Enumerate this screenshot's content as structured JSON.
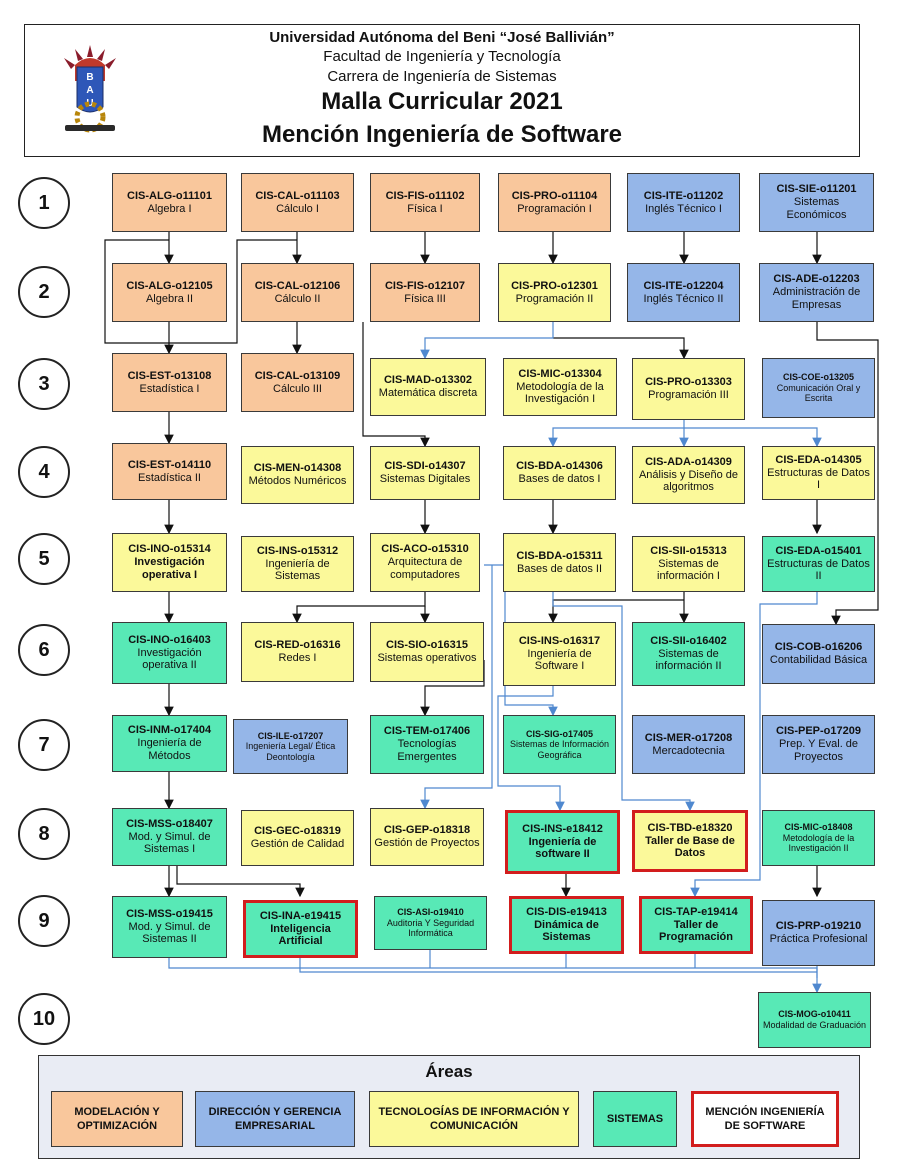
{
  "header": {
    "university": "Universidad Autónoma del Beni “José Ballivián”",
    "faculty": "Facultad de Ingeniería y Tecnología",
    "career": "Carrera de Ingeniería de Sistemas",
    "plan": "Malla Curricular 2021",
    "mention": "Mención Ingeniería de Software"
  },
  "logo": {
    "letters": "BAU"
  },
  "semesters": [
    "1",
    "2",
    "3",
    "4",
    "5",
    "6",
    "7",
    "8",
    "9",
    "10"
  ],
  "colors": {
    "orange": "#f9c79c",
    "blue": "#95b6e8",
    "yellow": "#fbf99a",
    "green": "#58e9b6",
    "mention_border": "#d21d1d"
  },
  "courses": [
    {
      "code": "CIS-ALG-o11101",
      "name": "Algebra I",
      "area": "orange"
    },
    {
      "code": "CIS-CAL-o11103",
      "name": "Cálculo I",
      "area": "orange"
    },
    {
      "code": "CIS-FIS-o11102",
      "name": "Física I",
      "area": "orange"
    },
    {
      "code": "CIS-PRO-o11104",
      "name": "Programación I",
      "area": "orange"
    },
    {
      "code": "CIS-ITE-o11202",
      "name": "Inglés Técnico I",
      "area": "blue"
    },
    {
      "code": "CIS-SIE-o11201",
      "name": "Sistemas Económicos",
      "area": "blue"
    },
    {
      "code": "CIS-ALG-o12105",
      "name": "Algebra II",
      "area": "orange"
    },
    {
      "code": "CIS-CAL-o12106",
      "name": "Cálculo II",
      "area": "orange"
    },
    {
      "code": "CIS-FIS-o12107",
      "name": "Física III",
      "area": "orange"
    },
    {
      "code": "CIS-PRO-o12301",
      "name": "Programación II",
      "area": "yellow"
    },
    {
      "code": "CIS-ITE-o12204",
      "name": "Inglés Técnico II",
      "area": "blue"
    },
    {
      "code": "CIS-ADE-o12203",
      "name": "Administración de Empresas",
      "area": "blue"
    },
    {
      "code": "CIS-EST-o13108",
      "name": "Estadística I",
      "area": "orange"
    },
    {
      "code": "CIS-CAL-o13109",
      "name": "Cálculo III",
      "area": "orange"
    },
    {
      "code": "CIS-MAD-o13302",
      "name": "Matemática discreta",
      "area": "yellow"
    },
    {
      "code": "CIS-MIC-o13304",
      "name": "Metodología de la Investigación I",
      "area": "yellow"
    },
    {
      "code": "CIS-PRO-o13303",
      "name": "Programación III",
      "area": "yellow"
    },
    {
      "code": "CIS-COE-o13205",
      "name": "Comunicación Oral y Escrita",
      "area": "blue"
    },
    {
      "code": "CIS-EST-o14110",
      "name": "Estadística II",
      "area": "orange"
    },
    {
      "code": "CIS-MEN-o14308",
      "name": "Métodos Numéricos",
      "area": "yellow"
    },
    {
      "code": "CIS-SDI-o14307",
      "name": "Sistemas Digitales",
      "area": "yellow"
    },
    {
      "code": "CIS-BDA-o14306",
      "name": "Bases de datos I",
      "area": "yellow"
    },
    {
      "code": "CIS-ADA-o14309",
      "name": "Análisis y Diseño de algoritmos",
      "area": "yellow"
    },
    {
      "code": "CIS-EDA-o14305",
      "name": "Estructuras de Datos I",
      "area": "yellow"
    },
    {
      "code": "CIS-INO-o15314",
      "name": "Investigación operativa I",
      "area": "yellow"
    },
    {
      "code": "CIS-INS-o15312",
      "name": "Ingeniería de Sistemas",
      "area": "yellow"
    },
    {
      "code": "CIS-ACO-o15310",
      "name": "Arquitectura de computadores",
      "area": "yellow"
    },
    {
      "code": "CIS-BDA-o15311",
      "name": "Bases de datos II",
      "area": "yellow"
    },
    {
      "code": "CIS-SII-o15313",
      "name": "Sistemas de información I",
      "area": "yellow"
    },
    {
      "code": "CIS-EDA-o15401",
      "name": "Estructuras de Datos II",
      "area": "green"
    },
    {
      "code": "CIS-INO-o16403",
      "name": "Investigación operativa II",
      "area": "green"
    },
    {
      "code": "CIS-RED-o16316",
      "name": "Redes I",
      "area": "yellow"
    },
    {
      "code": "CIS-SIO-o16315",
      "name": "Sistemas operativos",
      "area": "yellow"
    },
    {
      "code": "CIS-INS-o16317",
      "name": "Ingeniería de Software I",
      "area": "yellow"
    },
    {
      "code": "CIS-SII-o16402",
      "name": "Sistemas de información II",
      "area": "green"
    },
    {
      "code": "CIS-COB-o16206",
      "name": "Contabilidad Básica",
      "area": "blue"
    },
    {
      "code": "CIS-INM-o17404",
      "name": "Ingeniería de Métodos",
      "area": "green"
    },
    {
      "code": "CIS-ILE-o17207",
      "name": "Ingeniería Legal/ Ética Deontología",
      "area": "blue"
    },
    {
      "code": "CIS-TEM-o17406",
      "name": "Tecnologías Emergentes",
      "area": "green"
    },
    {
      "code": "CIS-SIG-o17405",
      "name": "Sistemas de Información Geográfica",
      "area": "green"
    },
    {
      "code": "CIS-MER-o17208",
      "name": "Mercadotecnia",
      "area": "blue"
    },
    {
      "code": "CIS-PEP-o17209",
      "name": "Prep. Y Eval. de Proyectos",
      "area": "blue"
    },
    {
      "code": "CIS-MSS-o18407",
      "name": "Mod. y Simul. de Sistemas I",
      "area": "green"
    },
    {
      "code": "CIS-GEC-o18319",
      "name": "Gestión de Calidad",
      "area": "yellow"
    },
    {
      "code": "CIS-GEP-o18318",
      "name": "Gestión de Proyectos",
      "area": "yellow"
    },
    {
      "code": "CIS-INS-e18412",
      "name": "Ingeniería de software II",
      "area": "green",
      "mention": true
    },
    {
      "code": "CIS-TBD-e18320",
      "name": "Taller de Base de Datos",
      "area": "yellow",
      "mention": true
    },
    {
      "code": "CIS-MIC-o18408",
      "name": "Metodología de la Investigación II",
      "area": "green"
    },
    {
      "code": "CIS-MSS-o19415",
      "name": "Mod. y Simul. de Sistemas II",
      "area": "green"
    },
    {
      "code": "CIS-INA-e19415",
      "name": "Inteligencia Artificial",
      "area": "green",
      "mention": true
    },
    {
      "code": "CIS-ASI-o19410",
      "name": "Auditoria Y Seguridad Informática",
      "area": "green"
    },
    {
      "code": "CIS-DIS-e19413",
      "name": "Dinámica de Sistemas",
      "area": "green",
      "mention": true
    },
    {
      "code": "CIS-TAP-e19414",
      "name": "Taller de Programación",
      "area": "green",
      "mention": true
    },
    {
      "code": "CIS-PRP-o19210",
      "name": "Práctica Profesional",
      "area": "blue"
    },
    {
      "code": "CIS-MOG-o10411",
      "name": "Modalidad de Graduación",
      "area": "green"
    }
  ],
  "legend": {
    "title": "Áreas",
    "items": [
      {
        "label": "MODELACIÓN Y OPTIMIZACIÓN",
        "area": "orange"
      },
      {
        "label": "DIRECCIÓN Y GERENCIA EMPRESARIAL",
        "area": "blue"
      },
      {
        "label": "TECNOLOGÍAS DE INFORMACIÓN Y COMUNICACIÓN",
        "area": "yellow"
      },
      {
        "label": "SISTEMAS",
        "area": "green"
      },
      {
        "label": "MENCIÓN INGENIERÍA DE SOFTWARE",
        "area": "mention"
      }
    ]
  }
}
